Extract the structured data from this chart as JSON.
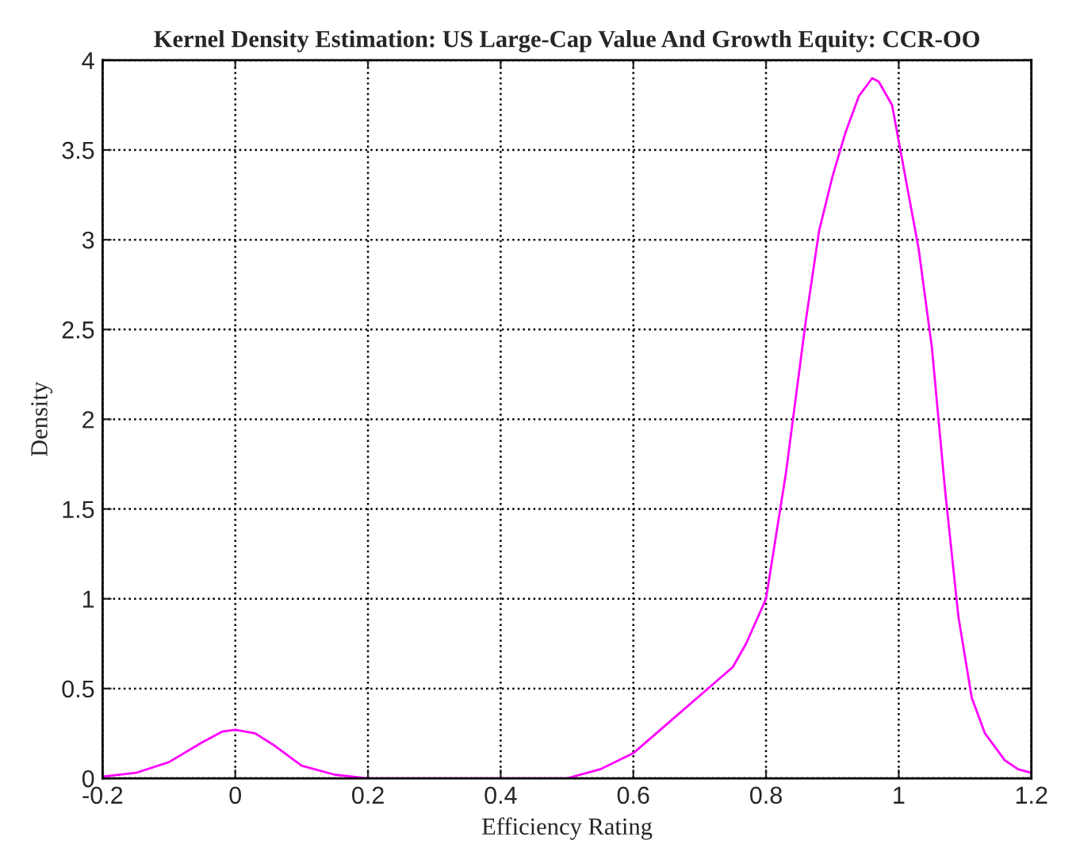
{
  "chart_data": {
    "type": "line",
    "title": "Kernel Density Estimation: US Large-Cap Value And Growth Equity: CCR-OO",
    "xlabel": "Efficiency Rating",
    "ylabel": "Density",
    "series": [
      {
        "color": "#ff00ff",
        "x": [
          -0.2,
          -0.15,
          -0.1,
          -0.05,
          -0.02,
          0.0,
          0.03,
          0.06,
          0.1,
          0.15,
          0.2,
          0.3,
          0.4,
          0.5,
          0.55,
          0.6,
          0.65,
          0.7,
          0.75,
          0.77,
          0.8,
          0.83,
          0.86,
          0.88,
          0.9,
          0.92,
          0.94,
          0.96,
          0.97,
          0.99,
          1.0,
          1.03,
          1.05,
          1.07,
          1.09,
          1.11,
          1.13,
          1.16,
          1.18,
          1.2
        ],
        "values": [
          0.01,
          0.03,
          0.09,
          0.2,
          0.26,
          0.27,
          0.25,
          0.18,
          0.07,
          0.02,
          0.0,
          0.0,
          0.0,
          0.0,
          0.05,
          0.14,
          0.3,
          0.46,
          0.62,
          0.75,
          1.0,
          1.7,
          2.55,
          3.05,
          3.35,
          3.6,
          3.8,
          3.9,
          3.88,
          3.75,
          3.55,
          2.95,
          2.4,
          1.6,
          0.9,
          0.45,
          0.25,
          0.1,
          0.05,
          0.03
        ]
      }
    ],
    "xlim": [
      -0.2,
      1.2
    ],
    "xticks": [
      {
        "value": -0.2,
        "label": "-0.2"
      },
      0,
      0.2,
      0.4,
      0.6,
      0.8,
      1,
      1.2
    ],
    "ylim": [
      0,
      4
    ],
    "yticks": [
      0,
      0.5,
      1,
      1.5,
      2,
      2.5,
      3,
      3.5,
      4
    ],
    "grid": true,
    "marker": "none",
    "line_style": "solid"
  }
}
